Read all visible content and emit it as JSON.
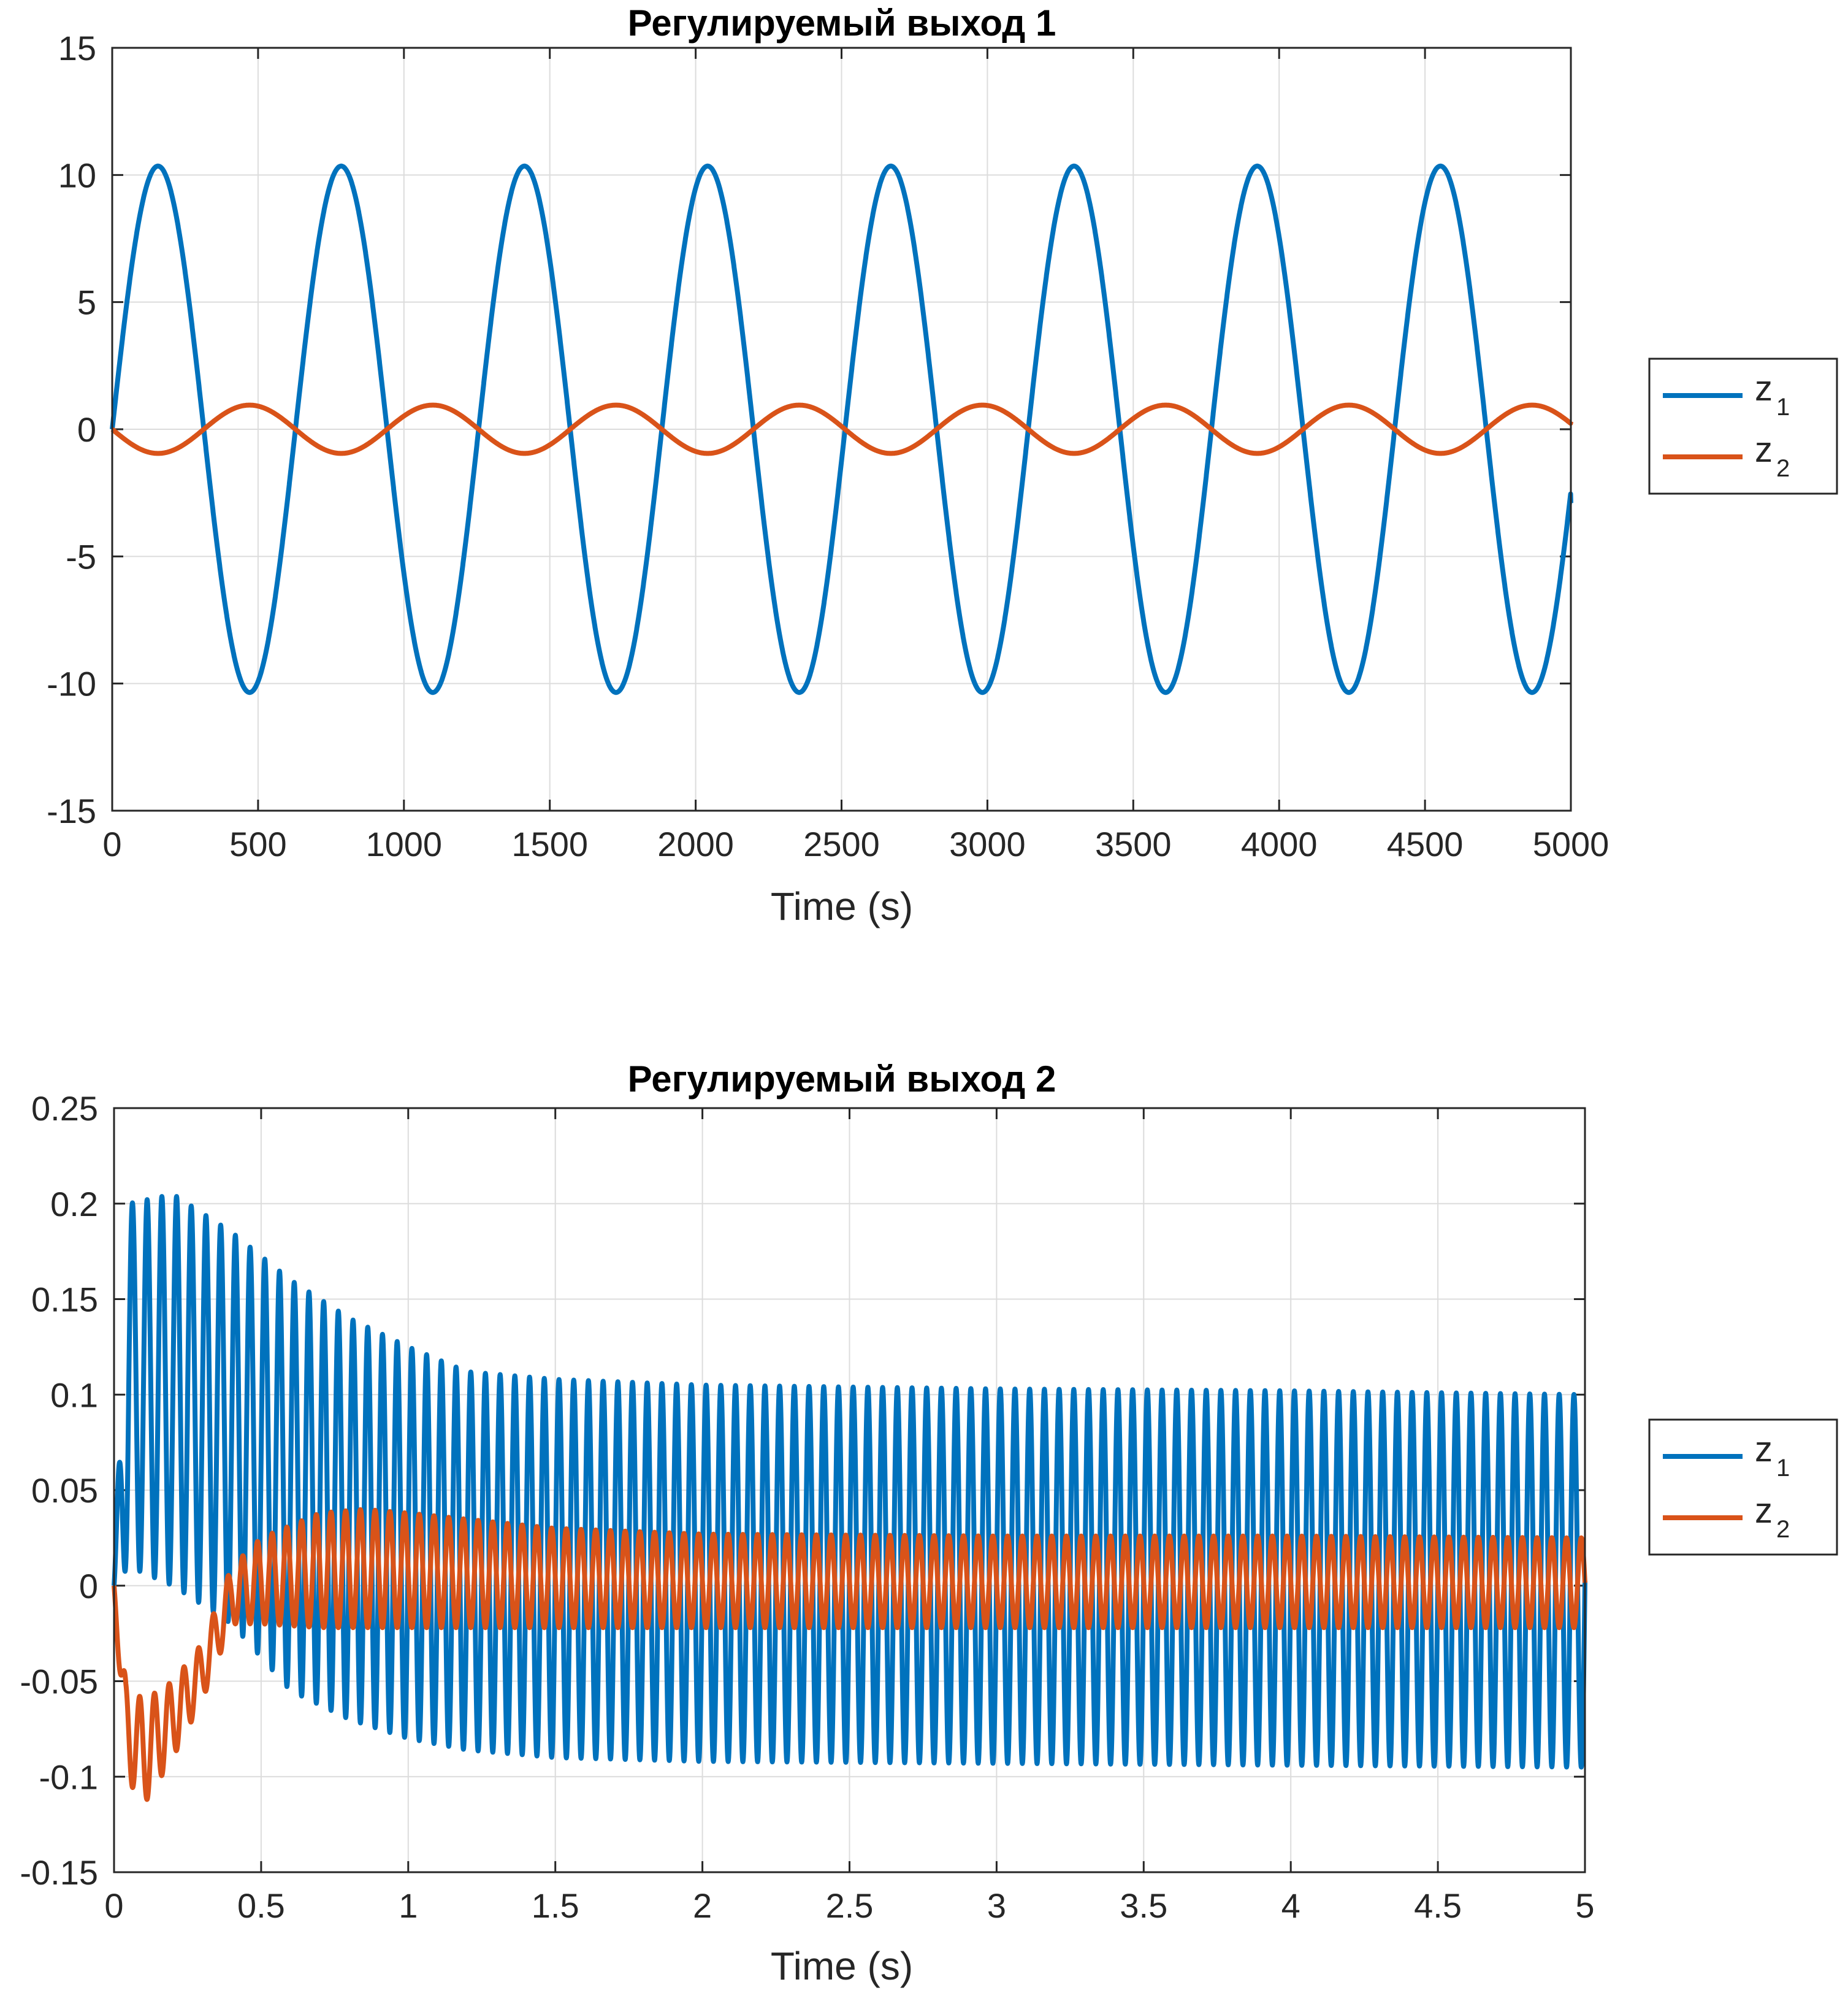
{
  "colors": {
    "z1": "#0072BD",
    "z2": "#D95319"
  },
  "chart_data": [
    {
      "type": "line",
      "title": "Регулируемый выход 1",
      "xlabel": "Time (s)",
      "ylabel": "",
      "xlim": [
        0,
        5000
      ],
      "ylim": [
        -15,
        15
      ],
      "xticks": [
        0,
        500,
        1000,
        1500,
        2000,
        2500,
        3000,
        3500,
        4000,
        4500,
        5000
      ],
      "xtick_labels": [
        "0",
        "500",
        "1000",
        "1500",
        "2000",
        "2500",
        "3000",
        "3500",
        "4000",
        "4500",
        "5000"
      ],
      "yticks": [
        -15,
        -10,
        -5,
        0,
        5,
        10,
        15
      ],
      "ytick_labels": [
        "-15",
        "-10",
        "-5",
        "0",
        "5",
        "10",
        "15"
      ],
      "grid": true,
      "legend_placement": "outside-right",
      "series": [
        {
          "name": "z",
          "subscript": "1",
          "color": "#0072BD",
          "amplitude": 10.35,
          "period": 628,
          "sign": 1,
          "start": 0,
          "end": -2.9
        },
        {
          "name": "z",
          "subscript": "2",
          "color": "#D95319",
          "amplitude": 0.95,
          "period": 628,
          "sign": -1,
          "start": 0,
          "end": 0.3
        }
      ]
    },
    {
      "type": "line",
      "title": "Регулируемый выход 2",
      "xlabel": "Time (s)",
      "ylabel": "",
      "xlim": [
        0,
        5
      ],
      "ylim": [
        -0.15,
        0.25
      ],
      "xticks": [
        0,
        0.5,
        1,
        1.5,
        2,
        2.5,
        3,
        3.5,
        4,
        4.5,
        5
      ],
      "xtick_labels": [
        "0",
        "0.5",
        "1",
        "1.5",
        "2",
        "2.5",
        "3",
        "3.5",
        "4",
        "4.5",
        "5"
      ],
      "yticks": [
        -0.15,
        -0.1,
        -0.05,
        0,
        0.05,
        0.1,
        0.15,
        0.2,
        0.25
      ],
      "ytick_labels": [
        "-0.15",
        "-0.1",
        "-0.05",
        "0",
        "0.05",
        "0.1",
        "0.15",
        "0.2",
        "0.25"
      ],
      "grid": true,
      "legend_placement": "outside-right",
      "oscillation_cycles": 100,
      "series": [
        {
          "name": "z",
          "subscript": "1",
          "color": "#0072BD",
          "envelope_t": [
            0,
            0.05,
            0.2,
            0.4,
            0.6,
            0.8,
            1.0,
            1.2,
            1.5,
            2.0,
            3.0,
            4.0,
            5.0
          ],
          "envelope_max": [
            0.0,
            0.2,
            0.205,
            0.185,
            0.16,
            0.14,
            0.125,
            0.112,
            0.108,
            0.105,
            0.103,
            0.102,
            0.1
          ],
          "envelope_min": [
            0.0,
            0.01,
            0.0,
            -0.02,
            -0.055,
            -0.07,
            -0.08,
            -0.086,
            -0.09,
            -0.092,
            -0.093,
            -0.094,
            -0.095
          ]
        },
        {
          "name": "z",
          "subscript": "2",
          "color": "#D95319",
          "envelope_t": [
            0,
            0.04,
            0.1,
            0.2,
            0.3,
            0.4,
            0.5,
            0.7,
            0.85,
            1.0,
            1.5,
            2.0,
            3.0,
            4.0,
            5.0
          ],
          "envelope_max": [
            0.0,
            -0.05,
            -0.06,
            -0.05,
            -0.03,
            0.01,
            0.025,
            0.038,
            0.04,
            0.038,
            0.03,
            0.027,
            0.026,
            0.026,
            0.025
          ],
          "envelope_min": [
            0.0,
            -0.1,
            -0.115,
            -0.09,
            -0.06,
            -0.02,
            -0.02,
            -0.022,
            -0.022,
            -0.022,
            -0.022,
            -0.022,
            -0.022,
            -0.022,
            -0.022
          ]
        }
      ]
    }
  ]
}
